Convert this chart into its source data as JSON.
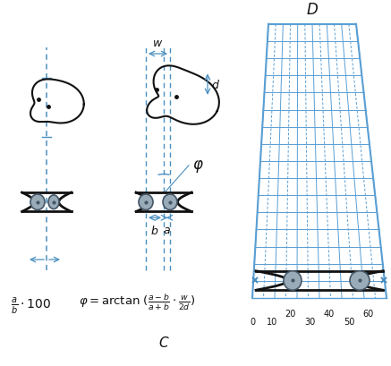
{
  "bg_color": "#ffffff",
  "blue": "#4a8fc0",
  "grid_blue": "#5a9fd4",
  "black": "#111111",
  "ped_face": "#9aabb8",
  "ped_edge": "#445566",
  "label_C": "C",
  "label_D": "D",
  "formula_left": "$\\frac{a}{b}\\cdot 100$",
  "formula_right": "$\\varphi = \\arctan\\,(\\frac{a-b}{a+b}\\cdot\\frac{w}{2d})$",
  "ticks_row1": [
    "20",
    "40",
    "60"
  ],
  "ticks_row2": [
    "0",
    "10",
    "30",
    "50"
  ],
  "figw": 4.37,
  "figh": 4.1,
  "dpi": 100
}
